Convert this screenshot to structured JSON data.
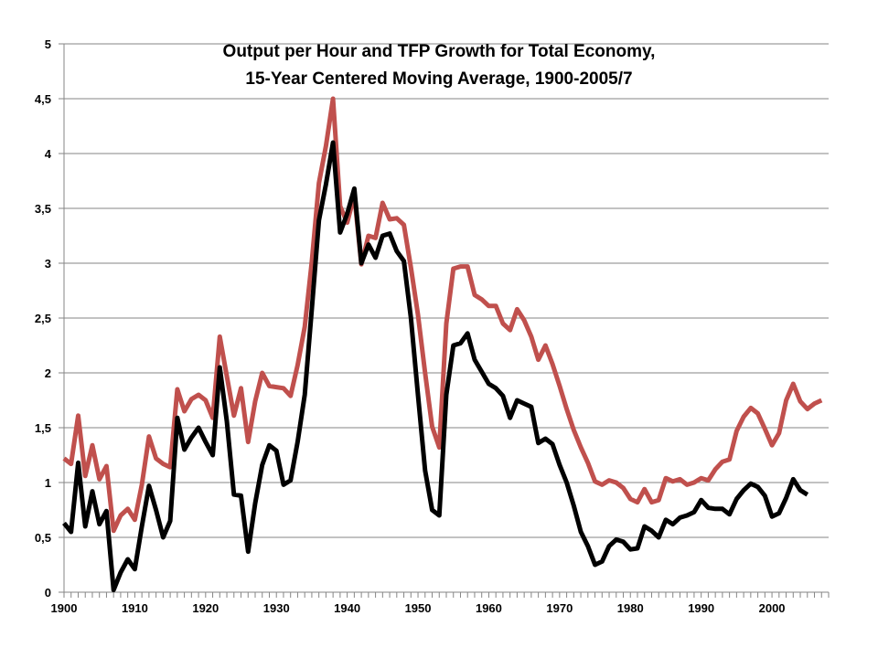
{
  "chart_data": {
    "type": "line",
    "title_lines": [
      "Output per Hour and TFP Growth for Total Economy,",
      "15-Year Centered Moving Average, 1900-2005/7"
    ],
    "xlim": [
      1900,
      2008
    ],
    "ylim": [
      0,
      5
    ],
    "x_ticks": [
      1900,
      1910,
      1920,
      1930,
      1940,
      1950,
      1960,
      1970,
      1980,
      1990,
      2000
    ],
    "y_ticks": [
      0,
      0.5,
      1,
      1.5,
      2,
      2.5,
      3,
      3.5,
      4,
      4.5,
      5
    ],
    "y_tick_labels": [
      "0",
      "0,5",
      "1",
      "1,5",
      "2",
      "2,5",
      "3",
      "3,5",
      "4",
      "4,5",
      "5"
    ],
    "grid": "horizontal",
    "legend": "none",
    "series": [
      {
        "color": "#c0504d",
        "x": [
          1900,
          1901,
          1902,
          1903,
          1904,
          1905,
          1906,
          1907,
          1908,
          1909,
          1910,
          1911,
          1912,
          1913,
          1914,
          1915,
          1916,
          1917,
          1918,
          1919,
          1920,
          1921,
          1922,
          1923,
          1924,
          1925,
          1926,
          1927,
          1928,
          1929,
          1930,
          1931,
          1932,
          1933,
          1934,
          1935,
          1936,
          1937,
          1938,
          1939,
          1940,
          1941,
          1942,
          1943,
          1944,
          1945,
          1946,
          1947,
          1948,
          1949,
          1950,
          1951,
          1952,
          1953,
          1954,
          1955,
          1956,
          1957,
          1958,
          1959,
          1960,
          1961,
          1962,
          1963,
          1964,
          1965,
          1966,
          1967,
          1968,
          1969,
          1970,
          1971,
          1972,
          1973,
          1974,
          1975,
          1976,
          1977,
          1978,
          1979,
          1980,
          1981,
          1982,
          1983,
          1984,
          1985,
          1986,
          1987,
          1988,
          1989,
          1990,
          1991,
          1992,
          1993,
          1994,
          1995,
          1996,
          1997,
          1998,
          1999,
          2000,
          2001,
          2002,
          2003,
          2004,
          2005,
          2006,
          2007
        ],
        "values": [
          1.22,
          1.17,
          1.61,
          1.06,
          1.34,
          1.03,
          1.15,
          0.56,
          0.7,
          0.76,
          0.66,
          0.98,
          1.42,
          1.22,
          1.17,
          1.14,
          1.85,
          1.65,
          1.76,
          1.8,
          1.75,
          1.59,
          2.33,
          1.97,
          1.61,
          1.86,
          1.37,
          1.74,
          2.0,
          1.88,
          1.87,
          1.86,
          1.79,
          2.07,
          2.42,
          3.01,
          3.73,
          4.07,
          4.5,
          3.52,
          3.37,
          3.62,
          2.99,
          3.25,
          3.23,
          3.55,
          3.4,
          3.41,
          3.35,
          2.96,
          2.53,
          2.0,
          1.51,
          1.32,
          2.45,
          2.95,
          2.97,
          2.97,
          2.71,
          2.67,
          2.61,
          2.61,
          2.45,
          2.39,
          2.58,
          2.48,
          2.33,
          2.12,
          2.25,
          2.08,
          1.88,
          1.67,
          1.48,
          1.32,
          1.18,
          1.01,
          0.98,
          1.02,
          1.0,
          0.95,
          0.85,
          0.82,
          0.94,
          0.82,
          0.84,
          1.04,
          1.01,
          1.03,
          0.98,
          1.0,
          1.04,
          1.02,
          1.12,
          1.19,
          1.21,
          1.47,
          1.6,
          1.68,
          1.63,
          1.49,
          1.34,
          1.45,
          1.75,
          1.9,
          1.74,
          1.67,
          1.72,
          1.75
        ]
      },
      {
        "color": "#000000",
        "x": [
          1900,
          1901,
          1902,
          1903,
          1904,
          1905,
          1906,
          1907,
          1908,
          1909,
          1910,
          1911,
          1912,
          1913,
          1914,
          1915,
          1916,
          1917,
          1918,
          1919,
          1920,
          1921,
          1922,
          1923,
          1924,
          1925,
          1926,
          1927,
          1928,
          1929,
          1930,
          1931,
          1932,
          1933,
          1934,
          1935,
          1936,
          1937,
          1938,
          1939,
          1940,
          1941,
          1942,
          1943,
          1944,
          1945,
          1946,
          1947,
          1948,
          1949,
          1950,
          1951,
          1952,
          1953,
          1954,
          1955,
          1956,
          1957,
          1958,
          1959,
          1960,
          1961,
          1962,
          1963,
          1964,
          1965,
          1966,
          1967,
          1968,
          1969,
          1970,
          1971,
          1972,
          1973,
          1974,
          1975,
          1976,
          1977,
          1978,
          1979,
          1980,
          1981,
          1982,
          1983,
          1984,
          1985,
          1986,
          1987,
          1988,
          1989,
          1990,
          1991,
          1992,
          1993,
          1994,
          1995,
          1996,
          1997,
          1998,
          1999,
          2000,
          2001,
          2002,
          2003,
          2004,
          2005
        ],
        "values": [
          0.63,
          0.55,
          1.18,
          0.6,
          0.92,
          0.62,
          0.74,
          0.02,
          0.18,
          0.3,
          0.21,
          0.6,
          0.97,
          0.75,
          0.5,
          0.65,
          1.59,
          1.3,
          1.41,
          1.5,
          1.37,
          1.25,
          2.05,
          1.56,
          0.89,
          0.88,
          0.37,
          0.81,
          1.16,
          1.34,
          1.29,
          0.98,
          1.02,
          1.37,
          1.8,
          2.58,
          3.39,
          3.72,
          4.1,
          3.28,
          3.45,
          3.68,
          3.0,
          3.17,
          3.05,
          3.25,
          3.27,
          3.11,
          3.02,
          2.5,
          1.8,
          1.11,
          0.75,
          0.7,
          1.8,
          2.25,
          2.27,
          2.36,
          2.12,
          2.01,
          1.9,
          1.86,
          1.79,
          1.59,
          1.75,
          1.72,
          1.69,
          1.36,
          1.4,
          1.35,
          1.16,
          1.0,
          0.79,
          0.55,
          0.42,
          0.25,
          0.28,
          0.42,
          0.48,
          0.46,
          0.39,
          0.4,
          0.6,
          0.56,
          0.5,
          0.66,
          0.62,
          0.68,
          0.7,
          0.73,
          0.84,
          0.77,
          0.76,
          0.76,
          0.71,
          0.85,
          0.93,
          0.99,
          0.96,
          0.88,
          0.69,
          0.72,
          0.86,
          1.03,
          0.93,
          0.89
        ]
      }
    ]
  }
}
